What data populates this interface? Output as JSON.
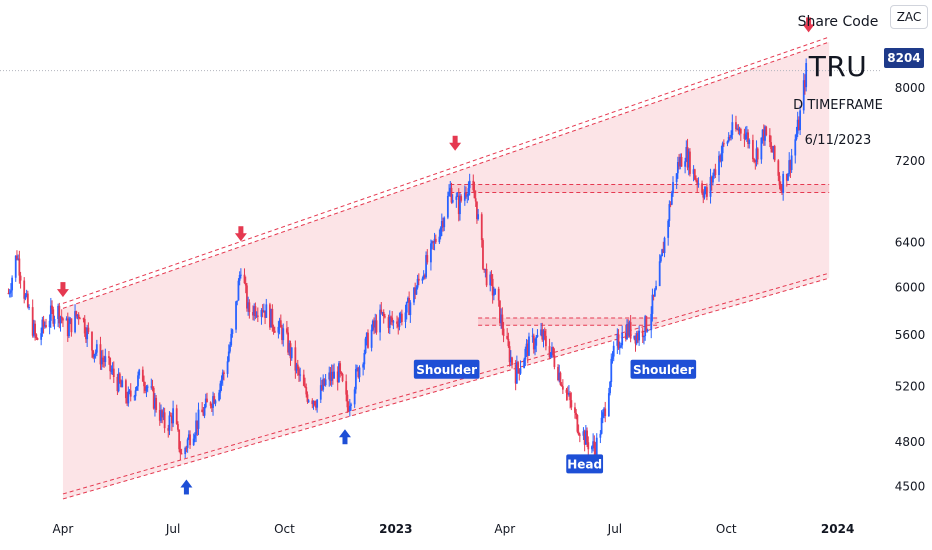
{
  "header": {
    "share_code_label": "Share Code",
    "share_code": "TRU",
    "timeframe": "D TIMEFRAME",
    "date": "6/11/2023",
    "currency": "ZAC",
    "last_price": "8204"
  },
  "colors": {
    "up": "#2962ff",
    "down": "#e53950",
    "channel_fill": "#fbdfe3",
    "channel_line": "#e53950",
    "label_bg": "#1e4fd6",
    "arrow_down": "#e53950",
    "arrow_up": "#1e4fd6"
  },
  "chart_data": {
    "type": "candlestick",
    "x_axis": {
      "ticks": [
        {
          "label": "Apr",
          "date": "2022-04-01",
          "bold": false
        },
        {
          "label": "Jul",
          "date": "2022-07-01",
          "bold": false
        },
        {
          "label": "Oct",
          "date": "2022-10-01",
          "bold": false
        },
        {
          "label": "2023",
          "date": "2023-01-01",
          "bold": true
        },
        {
          "label": "Apr",
          "date": "2023-04-01",
          "bold": false
        },
        {
          "label": "Jul",
          "date": "2023-07-01",
          "bold": false
        },
        {
          "label": "Oct",
          "date": "2023-10-01",
          "bold": false
        },
        {
          "label": "2024",
          "date": "2024-01-01",
          "bold": true
        }
      ]
    },
    "y_axis": {
      "scale": "log",
      "ticks": [
        4500,
        4800,
        5200,
        5600,
        6000,
        6400,
        7200,
        8000
      ],
      "range": [
        4350,
        8700
      ]
    },
    "price_path": [
      [
        "2022-02-15",
        5950
      ],
      [
        "2022-02-22",
        6300
      ],
      [
        "2022-03-01",
        5900
      ],
      [
        "2022-03-10",
        5550
      ],
      [
        "2022-03-20",
        5750
      ],
      [
        "2022-03-28",
        5800
      ],
      [
        "2022-04-05",
        5650
      ],
      [
        "2022-04-15",
        5800
      ],
      [
        "2022-04-25",
        5500
      ],
      [
        "2022-05-05",
        5400
      ],
      [
        "2022-05-15",
        5250
      ],
      [
        "2022-05-25",
        5100
      ],
      [
        "2022-06-05",
        5300
      ],
      [
        "2022-06-15",
        5100
      ],
      [
        "2022-06-25",
        4900
      ],
      [
        "2022-07-01",
        5000
      ],
      [
        "2022-07-08",
        4700
      ],
      [
        "2022-07-15",
        4850
      ],
      [
        "2022-07-25",
        5000
      ],
      [
        "2022-08-05",
        5150
      ],
      [
        "2022-08-12",
        5300
      ],
      [
        "2022-08-20",
        5650
      ],
      [
        "2022-08-26",
        6200
      ],
      [
        "2022-09-01",
        5800
      ],
      [
        "2022-09-12",
        5850
      ],
      [
        "2022-09-22",
        5700
      ],
      [
        "2022-10-01",
        5600
      ],
      [
        "2022-10-08",
        5400
      ],
      [
        "2022-10-18",
        5150
      ],
      [
        "2022-10-28",
        5100
      ],
      [
        "2022-11-05",
        5250
      ],
      [
        "2022-11-15",
        5300
      ],
      [
        "2022-11-22",
        5050
      ],
      [
        "2022-11-30",
        5300
      ],
      [
        "2022-12-10",
        5600
      ],
      [
        "2022-12-20",
        5750
      ],
      [
        "2022-12-30",
        5700
      ],
      [
        "2023-01-10",
        5800
      ],
      [
        "2023-01-20",
        6050
      ],
      [
        "2023-01-30",
        6300
      ],
      [
        "2023-02-08",
        6600
      ],
      [
        "2023-02-15",
        6900
      ],
      [
        "2023-02-22",
        6750
      ],
      [
        "2023-03-01",
        6950
      ],
      [
        "2023-03-08",
        6800
      ],
      [
        "2023-03-15",
        6150
      ],
      [
        "2023-03-25",
        5900
      ],
      [
        "2023-04-03",
        5500
      ],
      [
        "2023-04-10",
        5300
      ],
      [
        "2023-04-20",
        5500
      ],
      [
        "2023-05-01",
        5600
      ],
      [
        "2023-05-10",
        5450
      ],
      [
        "2023-05-20",
        5200
      ],
      [
        "2023-05-30",
        4950
      ],
      [
        "2023-06-08",
        4800
      ],
      [
        "2023-06-15",
        4750
      ],
      [
        "2023-06-22",
        5000
      ],
      [
        "2023-07-01",
        5500
      ],
      [
        "2023-07-10",
        5650
      ],
      [
        "2023-07-20",
        5600
      ],
      [
        "2023-07-28",
        5700
      ],
      [
        "2023-08-05",
        6000
      ],
      [
        "2023-08-12",
        6500
      ],
      [
        "2023-08-20",
        7100
      ],
      [
        "2023-08-28",
        7300
      ],
      [
        "2023-09-05",
        7050
      ],
      [
        "2023-09-15",
        6850
      ],
      [
        "2023-09-25",
        7250
      ],
      [
        "2023-10-05",
        7500
      ],
      [
        "2023-10-15",
        7550
      ],
      [
        "2023-10-25",
        7250
      ],
      [
        "2023-11-01",
        7500
      ],
      [
        "2023-11-08",
        7300
      ],
      [
        "2023-11-15",
        6950
      ],
      [
        "2023-11-22",
        7150
      ],
      [
        "2023-11-30",
        7600
      ],
      [
        "2023-12-06",
        8204
      ]
    ],
    "channel": {
      "start_date": "2022-04-01",
      "end_date": "2023-12-25",
      "lower_start": 4420,
      "lower_end": 6080,
      "upper_start": 5820,
      "upper_end": 8550
    },
    "resistance_zones": [
      {
        "start": "2023-02-15",
        "end": "2023-12-25",
        "low": 6880,
        "high": 6960
      },
      {
        "start": "2023-03-10",
        "end": "2023-08-05",
        "low": 5680,
        "high": 5740
      }
    ],
    "last_price_line": 8204,
    "arrows": [
      {
        "date": "2022-04-01",
        "price": 5950,
        "dir": "down"
      },
      {
        "date": "2022-08-26",
        "price": 6450,
        "dir": "down"
      },
      {
        "date": "2023-02-19",
        "price": 7350,
        "dir": "down"
      },
      {
        "date": "2023-12-08",
        "price": 8720,
        "dir": "down"
      },
      {
        "date": "2022-07-12",
        "price": 4520,
        "dir": "up"
      },
      {
        "date": "2022-11-20",
        "price": 4860,
        "dir": "up"
      }
    ],
    "annotations": [
      {
        "text": "Shoulder",
        "date": "2023-02-12",
        "price": 5330,
        "key": "shoulder_left"
      },
      {
        "text": "Head",
        "date": "2023-06-06",
        "price": 4650,
        "key": "head"
      },
      {
        "text": "Shoulder",
        "date": "2023-08-10",
        "price": 5330,
        "key": "shoulder_right"
      }
    ]
  }
}
